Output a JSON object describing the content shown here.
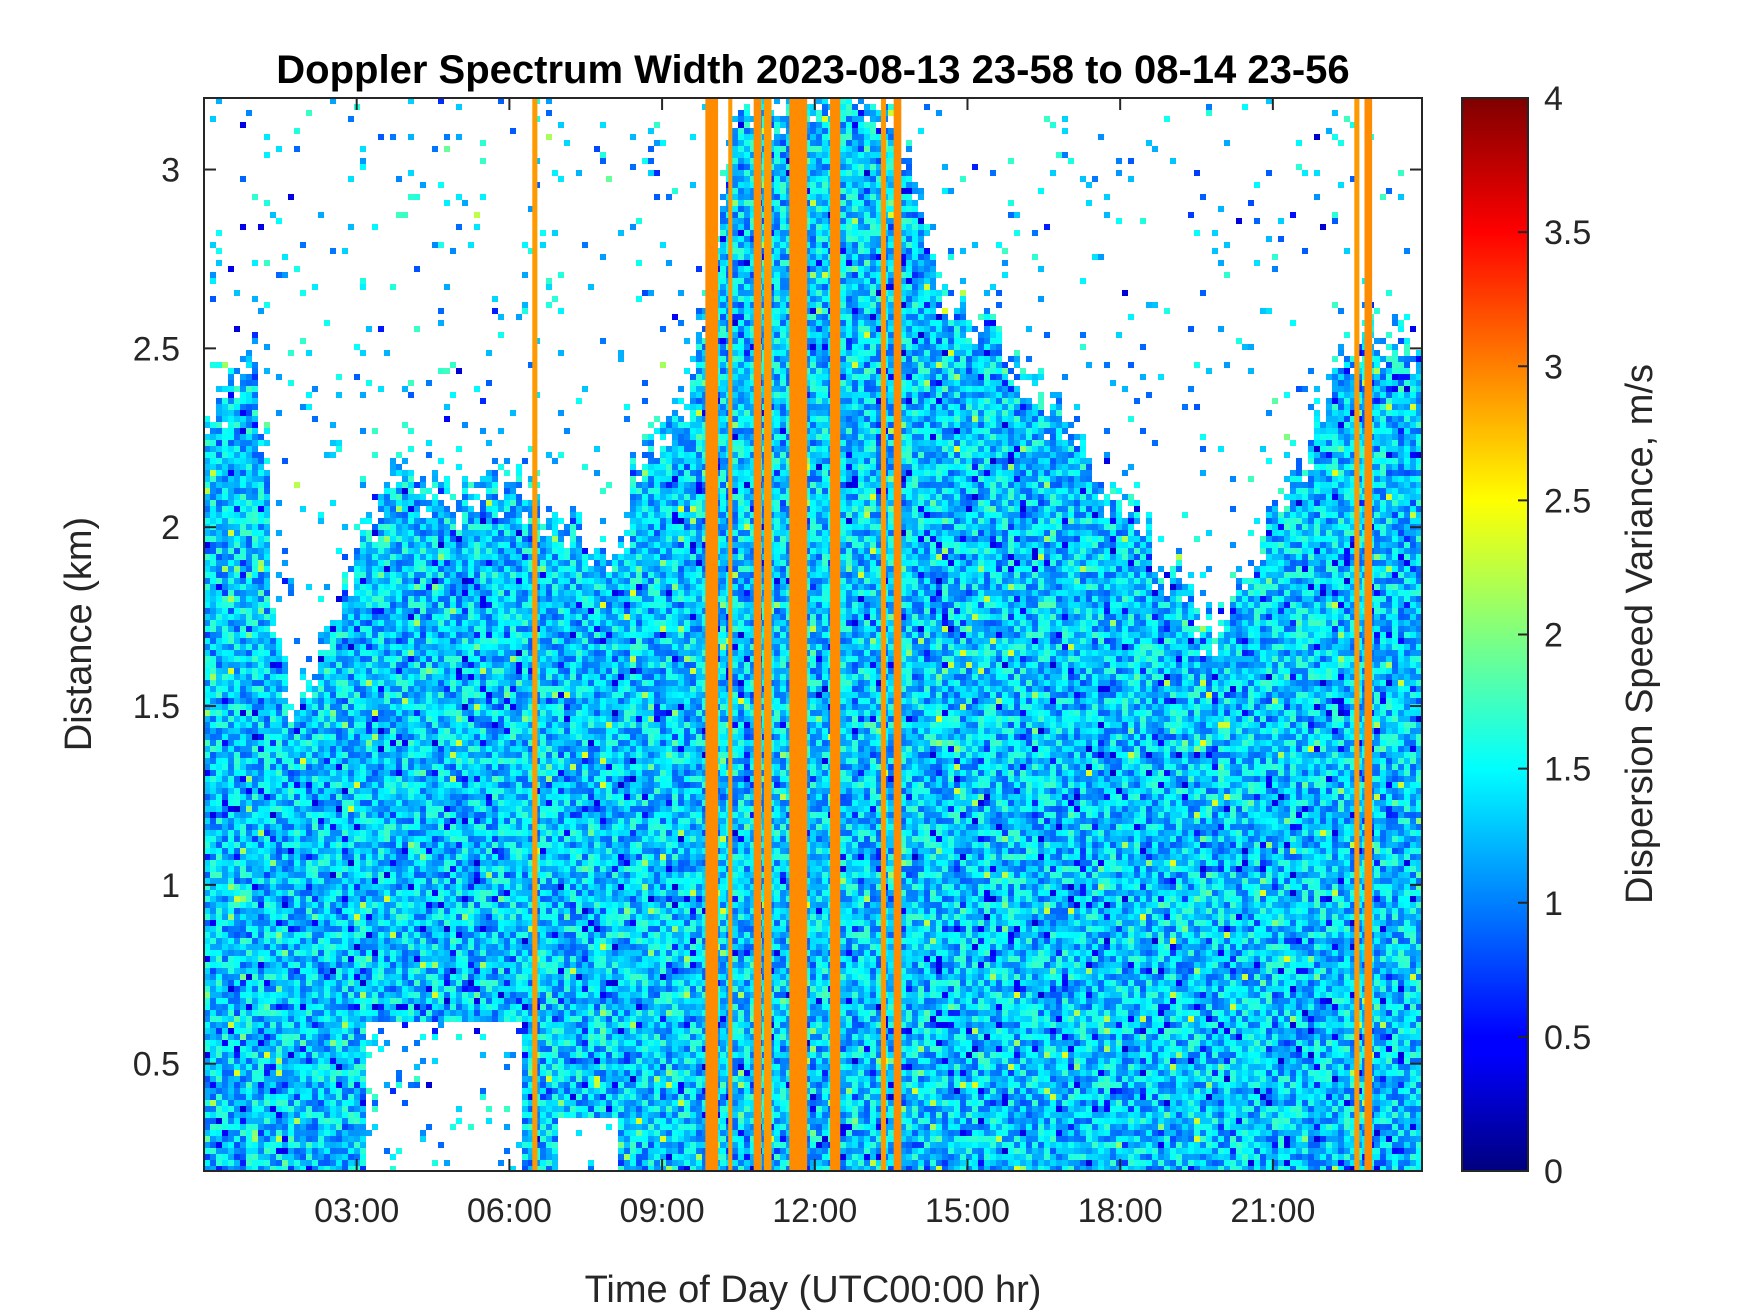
{
  "chart_data": {
    "type": "heatmap",
    "title": "Doppler Spectrum Width 2023-08-13 23-58 to 08-14 23-56",
    "xlabel": "Time of Day (UTC00:00 hr)",
    "ylabel": "Distance (km)",
    "colorbar_label": "Dispersion Speed Variance, m/s",
    "colormap": "jet",
    "xlim": [
      0,
      23.93
    ],
    "ylim": [
      0.2,
      3.2
    ],
    "clim": [
      0,
      4
    ],
    "x_ticks": [
      3,
      6,
      9,
      12,
      15,
      18,
      21
    ],
    "x_tick_labels": [
      "03:00",
      "06:00",
      "09:00",
      "12:00",
      "15:00",
      "18:00",
      "21:00"
    ],
    "y_ticks": [
      0.5,
      1,
      1.5,
      2,
      2.5,
      3
    ],
    "y_tick_labels": [
      "0.5",
      "1",
      "1.5",
      "2",
      "2.5",
      "3"
    ],
    "colorbar_ticks": [
      0,
      0.5,
      1,
      1.5,
      2,
      2.5,
      3,
      3.5,
      4
    ],
    "colorbar_tick_labels": [
      "0",
      "0.5",
      "1",
      "1.5",
      "2",
      "2.5",
      "3",
      "3.5",
      "4"
    ],
    "typical_value": 1.3,
    "signal_top_km": [
      [
        0.0,
        2.3
      ],
      [
        0.5,
        2.4
      ],
      [
        1.0,
        2.5
      ],
      [
        1.2,
        2.2
      ],
      [
        1.4,
        1.7
      ],
      [
        1.7,
        1.5
      ],
      [
        2.0,
        1.6
      ],
      [
        2.6,
        1.8
      ],
      [
        3.0,
        2.0
      ],
      [
        3.5,
        2.1
      ],
      [
        4.0,
        2.2
      ],
      [
        4.8,
        2.1
      ],
      [
        5.5,
        2.2
      ],
      [
        6.5,
        2.1
      ],
      [
        7.5,
        2.0
      ],
      [
        8.0,
        1.9
      ],
      [
        8.5,
        2.2
      ],
      [
        9.0,
        2.3
      ],
      [
        9.5,
        2.4
      ],
      [
        10.0,
        2.8
      ],
      [
        10.5,
        3.2
      ],
      [
        12.0,
        3.2
      ],
      [
        13.5,
        3.2
      ],
      [
        14.5,
        2.7
      ],
      [
        15.5,
        2.6
      ],
      [
        16.5,
        2.4
      ],
      [
        17.5,
        2.2
      ],
      [
        18.5,
        2.0
      ],
      [
        19.2,
        1.85
      ],
      [
        19.8,
        1.75
      ],
      [
        20.5,
        1.9
      ],
      [
        21.0,
        2.1
      ],
      [
        21.5,
        2.2
      ],
      [
        22.3,
        2.5
      ],
      [
        23.0,
        2.6
      ],
      [
        23.93,
        2.5
      ]
    ],
    "lower_gaps": [
      {
        "x": [
          3.2,
          6.2
        ],
        "y": [
          0.2,
          0.62
        ]
      },
      {
        "x": [
          6.9,
          8.1
        ],
        "y": [
          0.2,
          0.34
        ]
      }
    ],
    "high_variance_bands": [
      {
        "x": [
          6.45,
          6.55
        ],
        "value": 2.9
      },
      {
        "x": [
          9.85,
          10.1
        ],
        "value": 2.95
      },
      {
        "x": [
          10.3,
          10.38
        ],
        "value": 2.9
      },
      {
        "x": [
          10.8,
          10.95
        ],
        "value": 2.95
      },
      {
        "x": [
          11.0,
          11.15
        ],
        "value": 2.9
      },
      {
        "x": [
          11.5,
          11.85
        ],
        "value": 2.95
      },
      {
        "x": [
          12.3,
          12.5
        ],
        "value": 2.95
      },
      {
        "x": [
          13.3,
          13.4
        ],
        "value": 2.9
      },
      {
        "x": [
          13.55,
          13.7
        ],
        "value": 2.95
      },
      {
        "x": [
          22.6,
          22.7
        ],
        "value": 2.9
      },
      {
        "x": [
          22.8,
          22.95
        ],
        "value": 2.95
      }
    ]
  }
}
